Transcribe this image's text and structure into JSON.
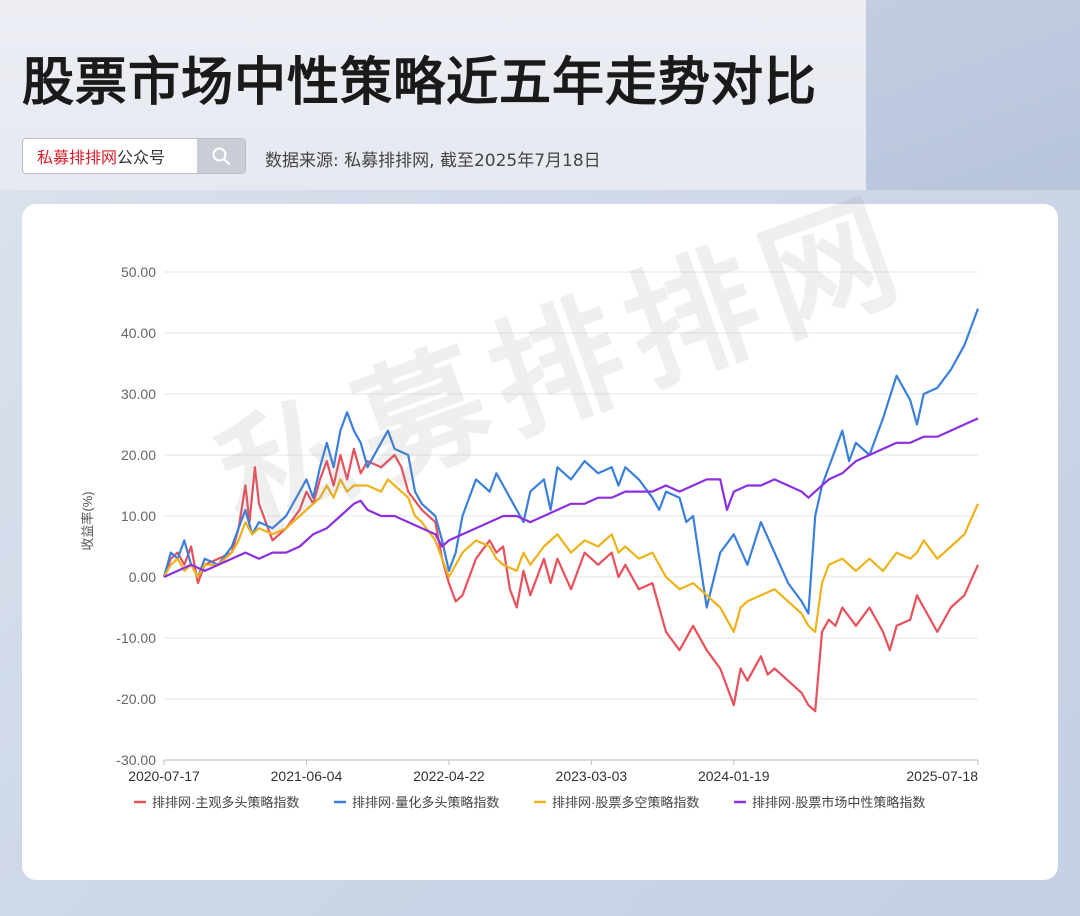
{
  "header": {
    "title": "股票市场中性策略近五年走势对比",
    "search_brand": "私募排排网",
    "search_suffix": "公众号",
    "source": "数据来源: 私募排排网, 截至2025年7月18日"
  },
  "watermark": "私募排排网",
  "chart_data": {
    "type": "line",
    "ylabel": "收益率(%)",
    "xlabel": "",
    "ylim": [
      -30,
      50
    ],
    "yticks": [
      "50.00",
      "40.00",
      "30.00",
      "20.00",
      "10.00",
      "0.00",
      "-10.00",
      "-20.00",
      "-30.00"
    ],
    "xlim": [
      0,
      60
    ],
    "xticks": [
      {
        "label": "2020-07-17",
        "x": 0
      },
      {
        "label": "2021-06-04",
        "x": 10.5
      },
      {
        "label": "2022-04-22",
        "x": 21
      },
      {
        "label": "2023-03-03",
        "x": 31.5
      },
      {
        "label": "2024-01-19",
        "x": 42
      },
      {
        "label": "2025-07-18",
        "x": 60
      }
    ],
    "x_unit": "months since 2020-07-17",
    "grid": true,
    "legend_position": "bottom",
    "series": [
      {
        "name": "排排网·主观多头策略指数",
        "color": "#e8505b",
        "points": [
          [
            0,
            0
          ],
          [
            0.5,
            3
          ],
          [
            1,
            4
          ],
          [
            1.5,
            2
          ],
          [
            2,
            5
          ],
          [
            2.5,
            -1
          ],
          [
            3,
            2
          ],
          [
            4,
            3
          ],
          [
            5,
            4
          ],
          [
            5.5,
            8
          ],
          [
            6,
            15
          ],
          [
            6.3,
            9
          ],
          [
            6.7,
            18
          ],
          [
            7,
            12
          ],
          [
            7.5,
            9
          ],
          [
            8,
            6
          ],
          [
            9,
            8
          ],
          [
            10,
            11
          ],
          [
            10.5,
            14
          ],
          [
            11,
            12
          ],
          [
            11.5,
            16
          ],
          [
            12,
            19
          ],
          [
            12.5,
            15
          ],
          [
            13,
            20
          ],
          [
            13.5,
            16
          ],
          [
            14,
            21
          ],
          [
            14.5,
            17
          ],
          [
            15,
            19
          ],
          [
            16,
            18
          ],
          [
            17,
            20
          ],
          [
            17.5,
            18
          ],
          [
            18,
            14
          ],
          [
            19,
            11
          ],
          [
            20,
            9
          ],
          [
            20.5,
            3
          ],
          [
            21,
            -1
          ],
          [
            21.5,
            -4
          ],
          [
            22,
            -3
          ],
          [
            23,
            3
          ],
          [
            24,
            6
          ],
          [
            24.5,
            4
          ],
          [
            25,
            5
          ],
          [
            25.5,
            -2
          ],
          [
            26,
            -5
          ],
          [
            26.5,
            1
          ],
          [
            27,
            -3
          ],
          [
            28,
            3
          ],
          [
            28.5,
            -1
          ],
          [
            29,
            3
          ],
          [
            30,
            -2
          ],
          [
            31,
            4
          ],
          [
            32,
            2
          ],
          [
            33,
            4
          ],
          [
            33.5,
            0
          ],
          [
            34,
            2
          ],
          [
            35,
            -2
          ],
          [
            36,
            -1
          ],
          [
            36.5,
            -5
          ],
          [
            37,
            -9
          ],
          [
            38,
            -12
          ],
          [
            39,
            -8
          ],
          [
            40,
            -12
          ],
          [
            41,
            -15
          ],
          [
            41.5,
            -18
          ],
          [
            42,
            -21
          ],
          [
            42.5,
            -15
          ],
          [
            43,
            -17
          ],
          [
            44,
            -13
          ],
          [
            44.5,
            -16
          ],
          [
            45,
            -15
          ],
          [
            46,
            -17
          ],
          [
            47,
            -19
          ],
          [
            47.5,
            -21
          ],
          [
            48,
            -22
          ],
          [
            48.5,
            -9
          ],
          [
            49,
            -7
          ],
          [
            49.5,
            -8
          ],
          [
            50,
            -5
          ],
          [
            51,
            -8
          ],
          [
            52,
            -5
          ],
          [
            53,
            -9
          ],
          [
            53.5,
            -12
          ],
          [
            54,
            -8
          ],
          [
            55,
            -7
          ],
          [
            55.5,
            -3
          ],
          [
            56,
            -5
          ],
          [
            57,
            -9
          ],
          [
            58,
            -5
          ],
          [
            59,
            -3
          ],
          [
            60,
            2
          ]
        ]
      },
      {
        "name": "排排网·量化多头策略指数",
        "color": "#3a7fdb",
        "points": [
          [
            0,
            0
          ],
          [
            0.5,
            4
          ],
          [
            1,
            3
          ],
          [
            1.5,
            6
          ],
          [
            2,
            2
          ],
          [
            2.5,
            0
          ],
          [
            3,
            3
          ],
          [
            4,
            2
          ],
          [
            5,
            5
          ],
          [
            5.5,
            8
          ],
          [
            6,
            11
          ],
          [
            6.5,
            7
          ],
          [
            7,
            9
          ],
          [
            8,
            8
          ],
          [
            9,
            10
          ],
          [
            10,
            14
          ],
          [
            10.5,
            16
          ],
          [
            11,
            13
          ],
          [
            11.5,
            18
          ],
          [
            12,
            22
          ],
          [
            12.5,
            18
          ],
          [
            13,
            24
          ],
          [
            13.5,
            27
          ],
          [
            14,
            24
          ],
          [
            14.5,
            22
          ],
          [
            15,
            18
          ],
          [
            16,
            22
          ],
          [
            16.5,
            24
          ],
          [
            17,
            21
          ],
          [
            18,
            20
          ],
          [
            18.5,
            14
          ],
          [
            19,
            12
          ],
          [
            20,
            10
          ],
          [
            20.5,
            6
          ],
          [
            21,
            1
          ],
          [
            21.5,
            4
          ],
          [
            22,
            10
          ],
          [
            23,
            16
          ],
          [
            24,
            14
          ],
          [
            24.5,
            17
          ],
          [
            25,
            15
          ],
          [
            26,
            11
          ],
          [
            26.5,
            9
          ],
          [
            27,
            14
          ],
          [
            28,
            16
          ],
          [
            28.5,
            11
          ],
          [
            29,
            18
          ],
          [
            30,
            16
          ],
          [
            31,
            19
          ],
          [
            32,
            17
          ],
          [
            33,
            18
          ],
          [
            33.5,
            15
          ],
          [
            34,
            18
          ],
          [
            35,
            16
          ],
          [
            36,
            13
          ],
          [
            36.5,
            11
          ],
          [
            37,
            14
          ],
          [
            38,
            13
          ],
          [
            38.5,
            9
          ],
          [
            39,
            10
          ],
          [
            40,
            -5
          ],
          [
            41,
            4
          ],
          [
            42,
            7
          ],
          [
            43,
            2
          ],
          [
            44,
            9
          ],
          [
            45,
            4
          ],
          [
            46,
            -1
          ],
          [
            47,
            -4
          ],
          [
            47.5,
            -6
          ],
          [
            48,
            10
          ],
          [
            48.5,
            15
          ],
          [
            49,
            18
          ],
          [
            50,
            24
          ],
          [
            50.5,
            19
          ],
          [
            51,
            22
          ],
          [
            52,
            20
          ],
          [
            53,
            26
          ],
          [
            54,
            33
          ],
          [
            55,
            29
          ],
          [
            55.5,
            25
          ],
          [
            56,
            30
          ],
          [
            57,
            31
          ],
          [
            58,
            34
          ],
          [
            59,
            38
          ],
          [
            60,
            44
          ]
        ]
      },
      {
        "name": "排排网·股票多空策略指数",
        "color": "#f0b21a",
        "points": [
          [
            0,
            0
          ],
          [
            0.5,
            2
          ],
          [
            1,
            3
          ],
          [
            1.5,
            1
          ],
          [
            2,
            2
          ],
          [
            2.5,
            0
          ],
          [
            3,
            2
          ],
          [
            4,
            2
          ],
          [
            5,
            4
          ],
          [
            5.5,
            6
          ],
          [
            6,
            9
          ],
          [
            6.5,
            7
          ],
          [
            7,
            8
          ],
          [
            8,
            7
          ],
          [
            9,
            8
          ],
          [
            10,
            10
          ],
          [
            10.5,
            11
          ],
          [
            11,
            12
          ],
          [
            11.5,
            13
          ],
          [
            12,
            15
          ],
          [
            12.5,
            13
          ],
          [
            13,
            16
          ],
          [
            13.5,
            14
          ],
          [
            14,
            15
          ],
          [
            15,
            15
          ],
          [
            16,
            14
          ],
          [
            16.5,
            16
          ],
          [
            17,
            15
          ],
          [
            18,
            13
          ],
          [
            18.5,
            10
          ],
          [
            19,
            9
          ],
          [
            20,
            6
          ],
          [
            20.5,
            3
          ],
          [
            21,
            0
          ],
          [
            21.5,
            2
          ],
          [
            22,
            4
          ],
          [
            23,
            6
          ],
          [
            24,
            5
          ],
          [
            24.5,
            3
          ],
          [
            25,
            2
          ],
          [
            26,
            1
          ],
          [
            26.5,
            4
          ],
          [
            27,
            2
          ],
          [
            28,
            5
          ],
          [
            29,
            7
          ],
          [
            30,
            4
          ],
          [
            31,
            6
          ],
          [
            32,
            5
          ],
          [
            33,
            7
          ],
          [
            33.5,
            4
          ],
          [
            34,
            5
          ],
          [
            35,
            3
          ],
          [
            36,
            4
          ],
          [
            36.5,
            2
          ],
          [
            37,
            0
          ],
          [
            38,
            -2
          ],
          [
            39,
            -1
          ],
          [
            40,
            -3
          ],
          [
            41,
            -5
          ],
          [
            41.5,
            -7
          ],
          [
            42,
            -9
          ],
          [
            42.5,
            -5
          ],
          [
            43,
            -4
          ],
          [
            44,
            -3
          ],
          [
            45,
            -2
          ],
          [
            46,
            -4
          ],
          [
            47,
            -6
          ],
          [
            47.5,
            -8
          ],
          [
            48,
            -9
          ],
          [
            48.5,
            -1
          ],
          [
            49,
            2
          ],
          [
            50,
            3
          ],
          [
            51,
            1
          ],
          [
            52,
            3
          ],
          [
            53,
            1
          ],
          [
            54,
            4
          ],
          [
            55,
            3
          ],
          [
            55.5,
            4
          ],
          [
            56,
            6
          ],
          [
            57,
            3
          ],
          [
            58,
            5
          ],
          [
            59,
            7
          ],
          [
            60,
            12
          ]
        ]
      },
      {
        "name": "排排网·股票市场中性策略指数",
        "color": "#8b2fe0",
        "points": [
          [
            0,
            0
          ],
          [
            1,
            1
          ],
          [
            2,
            2
          ],
          [
            3,
            1
          ],
          [
            4,
            2
          ],
          [
            5,
            3
          ],
          [
            6,
            4
          ],
          [
            7,
            3
          ],
          [
            8,
            4
          ],
          [
            9,
            4
          ],
          [
            10,
            5
          ],
          [
            11,
            7
          ],
          [
            12,
            8
          ],
          [
            13,
            10
          ],
          [
            14,
            12
          ],
          [
            14.5,
            12.5
          ],
          [
            15,
            11
          ],
          [
            16,
            10
          ],
          [
            17,
            10
          ],
          [
            18,
            9
          ],
          [
            19,
            8
          ],
          [
            20,
            7
          ],
          [
            20.5,
            5
          ],
          [
            21,
            6
          ],
          [
            22,
            7
          ],
          [
            23,
            8
          ],
          [
            24,
            9
          ],
          [
            25,
            10
          ],
          [
            26,
            10
          ],
          [
            27,
            9
          ],
          [
            28,
            10
          ],
          [
            29,
            11
          ],
          [
            30,
            12
          ],
          [
            31,
            12
          ],
          [
            32,
            13
          ],
          [
            33,
            13
          ],
          [
            34,
            14
          ],
          [
            35,
            14
          ],
          [
            36,
            14
          ],
          [
            37,
            15
          ],
          [
            38,
            14
          ],
          [
            39,
            15
          ],
          [
            40,
            16
          ],
          [
            41,
            16
          ],
          [
            41.5,
            11
          ],
          [
            42,
            14
          ],
          [
            43,
            15
          ],
          [
            44,
            15
          ],
          [
            45,
            16
          ],
          [
            46,
            15
          ],
          [
            47,
            14
          ],
          [
            47.5,
            13
          ],
          [
            48,
            14
          ],
          [
            49,
            16
          ],
          [
            50,
            17
          ],
          [
            51,
            19
          ],
          [
            52,
            20
          ],
          [
            53,
            21
          ],
          [
            54,
            22
          ],
          [
            55,
            22
          ],
          [
            56,
            23
          ],
          [
            57,
            23
          ],
          [
            58,
            24
          ],
          [
            59,
            25
          ],
          [
            60,
            26
          ]
        ]
      }
    ]
  }
}
